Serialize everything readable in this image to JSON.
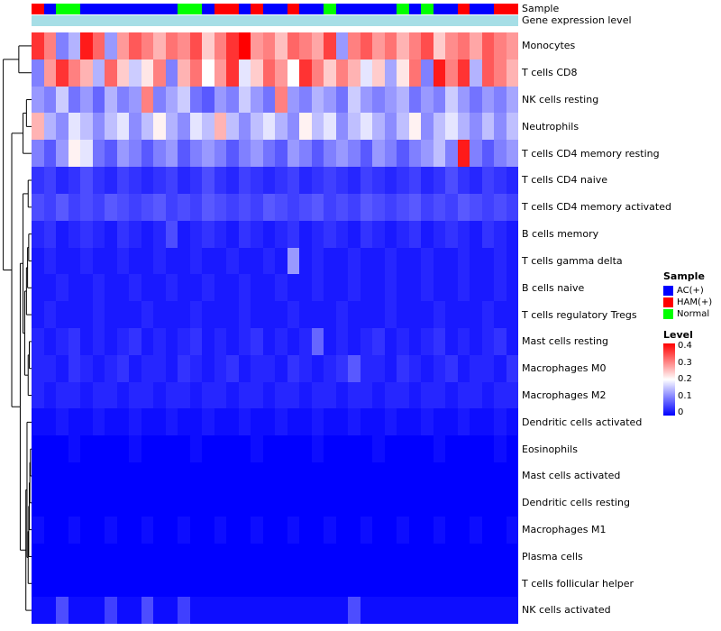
{
  "annotation_labels": {
    "sample": "Sample",
    "gene": "Gene expression level"
  },
  "legend": {
    "sample_title": "Sample",
    "groups": [
      {
        "label": "AC(+)",
        "color": "#0000FF"
      },
      {
        "label": "HAM(+)",
        "color": "#FF0000"
      },
      {
        "label": "Normal",
        "color": "#00FF00"
      }
    ],
    "level_title": "Level",
    "level_ticks": [
      "0.4",
      "0.3",
      "0.2",
      "0.1",
      "0"
    ]
  },
  "chart_data": {
    "type": "heatmap",
    "title": "",
    "rows": [
      "Monocytes",
      "T cells CD8",
      "NK cells resting",
      "Neutrophils",
      "T cells CD4 memory resting",
      "T cells CD4 naive",
      "T cells CD4 memory activated",
      "B cells memory",
      "T cells gamma delta",
      "B cells naive",
      "T cells regulatory  Tregs",
      "Mast cells resting",
      "Macrophages M0",
      "Macrophages M2",
      "Dendritic cells activated",
      "Eosinophils",
      "Mast cells activated",
      "Dendritic cells resting",
      "Macrophages M1",
      "Plasma cells",
      "T cells follicular helper",
      "NK cells activated"
    ],
    "columns_count": 40,
    "colorscale": {
      "min": 0,
      "max": 0.4,
      "colors": [
        "#0000FF",
        "#FFFFFF",
        "#FF0000"
      ]
    },
    "column_annotations": {
      "sample": {
        "label": "Sample",
        "groups": [
          "HAM(+)",
          "AC(+)",
          "Normal",
          "Normal",
          "AC(+)",
          "AC(+)",
          "AC(+)",
          "AC(+)",
          "AC(+)",
          "AC(+)",
          "AC(+)",
          "AC(+)",
          "Normal",
          "Normal",
          "AC(+)",
          "HAM(+)",
          "HAM(+)",
          "AC(+)",
          "HAM(+)",
          "AC(+)",
          "AC(+)",
          "HAM(+)",
          "AC(+)",
          "AC(+)",
          "Normal",
          "AC(+)",
          "AC(+)",
          "AC(+)",
          "AC(+)",
          "AC(+)",
          "Normal",
          "AC(+)",
          "Normal",
          "AC(+)",
          "AC(+)",
          "HAM(+)",
          "AC(+)",
          "AC(+)",
          "HAM(+)",
          "HAM(+)"
        ]
      },
      "gene_expression_level": {
        "label": "Gene expression level",
        "color": "#A6DEE6"
      }
    },
    "values": [
      [
        0.36,
        0.3,
        0.1,
        0.14,
        0.38,
        0.32,
        0.12,
        0.28,
        0.33,
        0.3,
        0.26,
        0.31,
        0.29,
        0.34,
        0.24,
        0.3,
        0.36,
        0.4,
        0.28,
        0.3,
        0.25,
        0.32,
        0.3,
        0.27,
        0.35,
        0.12,
        0.3,
        0.33,
        0.28,
        0.31,
        0.26,
        0.3,
        0.34,
        0.24,
        0.29,
        0.31,
        0.27,
        0.33,
        0.3,
        0.28
      ],
      [
        0.1,
        0.28,
        0.36,
        0.3,
        0.26,
        0.14,
        0.32,
        0.24,
        0.16,
        0.22,
        0.3,
        0.1,
        0.26,
        0.31,
        0.2,
        0.28,
        0.36,
        0.18,
        0.24,
        0.32,
        0.28,
        0.2,
        0.36,
        0.3,
        0.24,
        0.3,
        0.26,
        0.18,
        0.24,
        0.13,
        0.22,
        0.31,
        0.1,
        0.38,
        0.3,
        0.36,
        0.14,
        0.33,
        0.3,
        0.26
      ],
      [
        0.12,
        0.1,
        0.16,
        0.09,
        0.12,
        0.08,
        0.14,
        0.1,
        0.12,
        0.3,
        0.1,
        0.13,
        0.16,
        0.09,
        0.07,
        0.12,
        0.1,
        0.16,
        0.12,
        0.09,
        0.3,
        0.12,
        0.1,
        0.14,
        0.12,
        0.09,
        0.16,
        0.12,
        0.1,
        0.12,
        0.14,
        0.09,
        0.12,
        0.1,
        0.16,
        0.12,
        0.09,
        0.12,
        0.1,
        0.13
      ],
      [
        0.26,
        0.14,
        0.11,
        0.18,
        0.15,
        0.11,
        0.15,
        0.18,
        0.11,
        0.15,
        0.21,
        0.14,
        0.11,
        0.18,
        0.15,
        0.26,
        0.15,
        0.11,
        0.15,
        0.18,
        0.14,
        0.11,
        0.21,
        0.15,
        0.18,
        0.11,
        0.15,
        0.18,
        0.14,
        0.11,
        0.15,
        0.21,
        0.11,
        0.15,
        0.18,
        0.14,
        0.11,
        0.15,
        0.11,
        0.15
      ],
      [
        0.1,
        0.07,
        0.12,
        0.21,
        0.18,
        0.09,
        0.07,
        0.12,
        0.1,
        0.07,
        0.1,
        0.12,
        0.07,
        0.1,
        0.12,
        0.1,
        0.07,
        0.1,
        0.12,
        0.09,
        0.07,
        0.12,
        0.1,
        0.07,
        0.1,
        0.12,
        0.1,
        0.07,
        0.12,
        0.1,
        0.07,
        0.1,
        0.12,
        0.15,
        0.1,
        0.38,
        0.1,
        0.07,
        0.1,
        0.12
      ],
      [
        0.04,
        0.05,
        0.03,
        0.04,
        0.06,
        0.04,
        0.03,
        0.05,
        0.04,
        0.03,
        0.04,
        0.05,
        0.03,
        0.04,
        0.06,
        0.04,
        0.03,
        0.05,
        0.04,
        0.03,
        0.04,
        0.05,
        0.03,
        0.04,
        0.05,
        0.04,
        0.03,
        0.05,
        0.04,
        0.03,
        0.04,
        0.05,
        0.03,
        0.04,
        0.06,
        0.04,
        0.03,
        0.05,
        0.04,
        0.03
      ],
      [
        0.06,
        0.05,
        0.07,
        0.05,
        0.06,
        0.05,
        0.07,
        0.06,
        0.05,
        0.06,
        0.07,
        0.05,
        0.06,
        0.05,
        0.07,
        0.06,
        0.05,
        0.06,
        0.05,
        0.07,
        0.06,
        0.05,
        0.06,
        0.07,
        0.05,
        0.06,
        0.05,
        0.07,
        0.06,
        0.05,
        0.06,
        0.07,
        0.05,
        0.06,
        0.05,
        0.07,
        0.06,
        0.05,
        0.06,
        0.05
      ],
      [
        0.03,
        0.04,
        0.02,
        0.03,
        0.04,
        0.03,
        0.02,
        0.04,
        0.03,
        0.02,
        0.03,
        0.06,
        0.02,
        0.03,
        0.04,
        0.03,
        0.02,
        0.04,
        0.03,
        0.02,
        0.03,
        0.04,
        0.02,
        0.03,
        0.04,
        0.03,
        0.02,
        0.04,
        0.03,
        0.02,
        0.03,
        0.04,
        0.02,
        0.03,
        0.04,
        0.03,
        0.02,
        0.04,
        0.03,
        0.02
      ],
      [
        0.02,
        0.03,
        0.02,
        0.02,
        0.03,
        0.02,
        0.02,
        0.03,
        0.02,
        0.02,
        0.03,
        0.02,
        0.02,
        0.03,
        0.02,
        0.02,
        0.03,
        0.02,
        0.02,
        0.03,
        0.02,
        0.12,
        0.02,
        0.03,
        0.02,
        0.02,
        0.03,
        0.02,
        0.02,
        0.03,
        0.02,
        0.02,
        0.03,
        0.02,
        0.02,
        0.03,
        0.02,
        0.02,
        0.03,
        0.02
      ],
      [
        0.02,
        0.02,
        0.03,
        0.02,
        0.02,
        0.03,
        0.02,
        0.02,
        0.03,
        0.02,
        0.02,
        0.03,
        0.02,
        0.02,
        0.03,
        0.02,
        0.02,
        0.03,
        0.02,
        0.02,
        0.03,
        0.02,
        0.02,
        0.03,
        0.02,
        0.02,
        0.03,
        0.02,
        0.02,
        0.03,
        0.02,
        0.02,
        0.03,
        0.02,
        0.02,
        0.03,
        0.02,
        0.02,
        0.03,
        0.02
      ],
      [
        0.02,
        0.03,
        0.02,
        0.02,
        0.02,
        0.03,
        0.02,
        0.02,
        0.02,
        0.03,
        0.02,
        0.02,
        0.02,
        0.03,
        0.02,
        0.02,
        0.02,
        0.03,
        0.02,
        0.02,
        0.02,
        0.03,
        0.02,
        0.02,
        0.02,
        0.03,
        0.02,
        0.02,
        0.02,
        0.03,
        0.02,
        0.02,
        0.02,
        0.03,
        0.02,
        0.02,
        0.02,
        0.03,
        0.02,
        0.02
      ],
      [
        0.03,
        0.02,
        0.03,
        0.04,
        0.02,
        0.03,
        0.02,
        0.03,
        0.04,
        0.02,
        0.03,
        0.02,
        0.03,
        0.04,
        0.02,
        0.03,
        0.02,
        0.03,
        0.04,
        0.02,
        0.03,
        0.02,
        0.03,
        0.08,
        0.02,
        0.03,
        0.02,
        0.03,
        0.04,
        0.02,
        0.03,
        0.02,
        0.03,
        0.04,
        0.02,
        0.03,
        0.02,
        0.03,
        0.04,
        0.02
      ],
      [
        0.03,
        0.03,
        0.02,
        0.04,
        0.03,
        0.02,
        0.03,
        0.04,
        0.02,
        0.03,
        0.03,
        0.02,
        0.04,
        0.03,
        0.02,
        0.03,
        0.04,
        0.02,
        0.03,
        0.03,
        0.02,
        0.04,
        0.03,
        0.02,
        0.03,
        0.04,
        0.07,
        0.03,
        0.03,
        0.02,
        0.04,
        0.03,
        0.02,
        0.03,
        0.04,
        0.02,
        0.03,
        0.03,
        0.02,
        0.04
      ],
      [
        0.03,
        0.02,
        0.03,
        0.03,
        0.02,
        0.03,
        0.03,
        0.02,
        0.03,
        0.03,
        0.02,
        0.03,
        0.03,
        0.02,
        0.03,
        0.03,
        0.02,
        0.03,
        0.03,
        0.02,
        0.03,
        0.03,
        0.02,
        0.03,
        0.03,
        0.02,
        0.03,
        0.03,
        0.02,
        0.03,
        0.03,
        0.02,
        0.03,
        0.03,
        0.02,
        0.03,
        0.03,
        0.02,
        0.03,
        0.03
      ],
      [
        0.01,
        0.01,
        0.02,
        0.01,
        0.01,
        0.02,
        0.01,
        0.01,
        0.02,
        0.01,
        0.01,
        0.02,
        0.01,
        0.01,
        0.02,
        0.01,
        0.01,
        0.02,
        0.01,
        0.01,
        0.02,
        0.01,
        0.01,
        0.02,
        0.01,
        0.01,
        0.02,
        0.01,
        0.01,
        0.02,
        0.01,
        0.01,
        0.02,
        0.01,
        0.01,
        0.02,
        0.01,
        0.01,
        0.02,
        0.01
      ],
      [
        0,
        0,
        0,
        0.01,
        0,
        0,
        0,
        0,
        0.01,
        0,
        0,
        0,
        0,
        0.01,
        0,
        0,
        0,
        0,
        0.01,
        0,
        0,
        0,
        0,
        0.01,
        0,
        0,
        0,
        0,
        0.01,
        0,
        0,
        0,
        0,
        0.01,
        0,
        0,
        0,
        0,
        0.01,
        0
      ],
      [
        0,
        0,
        0,
        0,
        0,
        0,
        0,
        0,
        0,
        0,
        0,
        0,
        0,
        0,
        0,
        0,
        0,
        0,
        0,
        0,
        0,
        0,
        0,
        0,
        0,
        0,
        0,
        0,
        0,
        0,
        0,
        0,
        0,
        0,
        0,
        0,
        0,
        0,
        0,
        0
      ],
      [
        0,
        0,
        0,
        0,
        0,
        0,
        0,
        0,
        0,
        0,
        0,
        0,
        0,
        0,
        0,
        0,
        0,
        0,
        0,
        0,
        0,
        0,
        0,
        0,
        0,
        0,
        0,
        0,
        0,
        0,
        0,
        0,
        0,
        0,
        0,
        0,
        0,
        0,
        0,
        0
      ],
      [
        0.01,
        0,
        0,
        0.01,
        0,
        0,
        0.01,
        0,
        0,
        0.01,
        0,
        0,
        0.01,
        0,
        0,
        0.01,
        0,
        0,
        0.01,
        0,
        0,
        0.01,
        0,
        0,
        0.01,
        0,
        0,
        0.01,
        0,
        0,
        0.01,
        0,
        0,
        0.01,
        0,
        0,
        0.01,
        0,
        0,
        0.01
      ],
      [
        0,
        0,
        0,
        0,
        0,
        0,
        0,
        0,
        0,
        0,
        0,
        0,
        0,
        0,
        0,
        0,
        0,
        0,
        0,
        0,
        0,
        0,
        0,
        0,
        0,
        0,
        0,
        0,
        0,
        0,
        0,
        0,
        0,
        0,
        0,
        0,
        0,
        0,
        0,
        0
      ],
      [
        0,
        0,
        0,
        0,
        0,
        0,
        0,
        0,
        0,
        0,
        0,
        0,
        0,
        0,
        0,
        0,
        0,
        0,
        0,
        0,
        0,
        0,
        0,
        0,
        0,
        0,
        0,
        0,
        0,
        0,
        0,
        0,
        0,
        0,
        0,
        0,
        0,
        0,
        0,
        0
      ],
      [
        0.01,
        0.01,
        0.06,
        0.01,
        0.01,
        0.01,
        0.05,
        0.01,
        0.01,
        0.06,
        0.01,
        0.01,
        0.05,
        0.01,
        0.01,
        0.01,
        0.01,
        0.01,
        0.01,
        0.01,
        0.01,
        0.01,
        0.01,
        0.01,
        0.01,
        0.01,
        0.06,
        0.01,
        0.01,
        0.01,
        0.01,
        0.01,
        0.01,
        0.01,
        0.01,
        0.01,
        0.01,
        0.01,
        0.01,
        0.01
      ]
    ],
    "row_dendrogram": {
      "h": 1.0,
      "children": [
        {
          "h": 0.45,
          "children": [
            0,
            1
          ]
        },
        {
          "h": 0.7,
          "children": [
            {
              "h": 0.3,
              "children": [
                {
                  "h": 0.18,
                  "children": [
                    2,
                    3
                  ]
                },
                4
              ]
            },
            {
              "h": 0.4,
              "children": [
                {
                  "h": 0.3,
                  "children": [
                    {
                      "h": 0.12,
                      "children": [
                        5,
                        6
                      ]
                    },
                    {
                      "h": 0.24,
                      "children": [
                        {
                          "h": 0.18,
                          "children": [
                            {
                              "h": 0.14,
                              "children": [
                                {
                                  "h": 0.1,
                                  "children": [
                                    7,
                                    8
                                  ]
                                },
                                9
                              ]
                            },
                            10
                          ]
                        },
                        {
                          "h": 0.12,
                          "children": [
                            {
                              "h": 0.08,
                              "children": [
                                11,
                                12
                              ]
                            },
                            13
                          ]
                        }
                      ]
                    }
                  ]
                },
                {
                  "h": 0.2,
                  "children": [
                    {
                      "h": 0.16,
                      "children": [
                        14,
                        {
                          "h": 0.12,
                          "children": [
                            {
                              "h": 0.1,
                              "children": [
                                {
                                  "h": 0.08,
                                  "children": [
                                    {
                                      "h": 0.06,
                                      "children": [
                                        {
                                          "h": 0.04,
                                          "children": [
                                            15,
                                            16
                                          ]
                                        },
                                        17
                                      ]
                                    },
                                    18
                                  ]
                                },
                                19
                              ]
                            },
                            20
                          ]
                        }
                      ]
                    },
                    21
                  ]
                }
              ]
            }
          ]
        }
      ]
    }
  }
}
